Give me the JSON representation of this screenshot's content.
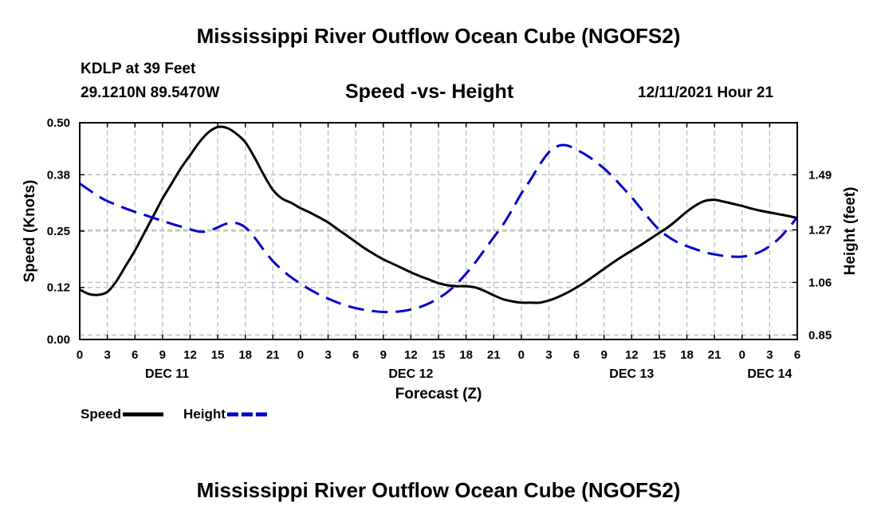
{
  "page": {
    "title": "Mississippi River Outflow Ocean Cube (NGOFS2)",
    "station": "KDLP at 39 Feet",
    "coords": "29.1210N  89.5470W",
    "subtitle": "Speed -vs- Height",
    "datetime": "12/11/2021 Hour 21",
    "footer_title": "Mississippi River Outflow Ocean Cube (NGOFS2)"
  },
  "chart_data": {
    "type": "line",
    "title": "Speed -vs- Height",
    "xlabel": "Forecast (Z)",
    "ylabel": "Speed (Knots)",
    "y2label": "Height (feet)",
    "x_unit": "hours since 12/11/2021 00Z",
    "xlim": [
      0,
      78
    ],
    "ylim": [
      0,
      0.5
    ],
    "y2lim": [
      0.832,
      1.698
    ],
    "grid": true,
    "x_ticks": [
      0,
      3,
      6,
      9,
      12,
      15,
      18,
      21,
      24,
      27,
      30,
      33,
      36,
      39,
      42,
      45,
      48,
      51,
      54,
      57,
      60,
      63,
      66,
      69,
      72,
      75,
      78
    ],
    "x_tick_labels": [
      "0",
      "3",
      "6",
      "9",
      "12",
      "15",
      "18",
      "21",
      "0",
      "3",
      "6",
      "9",
      "12",
      "15",
      "18",
      "21",
      "0",
      "3",
      "6",
      "9",
      "12",
      "15",
      "18",
      "21",
      "0",
      "3",
      "6"
    ],
    "date_labels": [
      {
        "x": 9.5,
        "label": "DEC 11"
      },
      {
        "x": 36,
        "label": "DEC 12"
      },
      {
        "x": 60,
        "label": "DEC 13"
      },
      {
        "x": 75,
        "label": "DEC 14"
      }
    ],
    "y_ticks": [
      0.0,
      0.12,
      0.25,
      0.38,
      0.5
    ],
    "y_tick_labels": [
      "0.00",
      "0.12",
      "0.25",
      "0.38",
      "0.50"
    ],
    "y2_ticks": [
      0.85,
      1.06,
      1.27,
      1.49
    ],
    "y2_tick_labels": [
      "0.85",
      "1.06",
      "1.27",
      "1.49"
    ],
    "series": [
      {
        "name": "Speed",
        "axis": "left",
        "color": "#000000",
        "dash": "solid",
        "x": [
          0,
          1,
          2,
          3,
          4,
          5,
          6,
          7,
          8,
          9,
          10,
          11,
          12,
          13,
          14,
          15,
          16,
          17,
          18,
          19,
          20,
          21,
          22,
          23,
          24,
          25,
          26,
          27,
          28,
          29,
          30,
          31,
          32,
          33,
          34,
          35,
          36,
          37,
          38,
          39,
          40,
          41,
          42,
          43,
          44,
          45,
          46,
          47,
          48,
          49,
          50,
          51,
          52,
          53,
          54,
          55,
          56,
          57,
          58,
          59,
          60,
          61,
          62,
          63,
          64,
          65,
          66,
          67,
          68,
          69,
          70,
          71,
          72,
          73,
          74,
          75,
          76,
          77,
          78
        ],
        "values": [
          0.115,
          0.105,
          0.103,
          0.11,
          0.135,
          0.17,
          0.205,
          0.245,
          0.285,
          0.325,
          0.36,
          0.395,
          0.425,
          0.455,
          0.478,
          0.49,
          0.488,
          0.475,
          0.455,
          0.42,
          0.38,
          0.345,
          0.325,
          0.315,
          0.303,
          0.293,
          0.282,
          0.27,
          0.255,
          0.24,
          0.225,
          0.21,
          0.197,
          0.185,
          0.175,
          0.165,
          0.155,
          0.146,
          0.138,
          0.13,
          0.125,
          0.123,
          0.123,
          0.12,
          0.112,
          0.102,
          0.093,
          0.088,
          0.085,
          0.085,
          0.085,
          0.09,
          0.098,
          0.108,
          0.12,
          0.133,
          0.148,
          0.163,
          0.178,
          0.192,
          0.205,
          0.218,
          0.232,
          0.246,
          0.26,
          0.277,
          0.295,
          0.31,
          0.32,
          0.322,
          0.318,
          0.313,
          0.308,
          0.302,
          0.297,
          0.293,
          0.289,
          0.285,
          0.28
        ]
      },
      {
        "name": "Height",
        "axis": "right",
        "color": "#0000cc",
        "dash": "dashed",
        "x": [
          0,
          1,
          2,
          3,
          4,
          5,
          6,
          7,
          8,
          9,
          10,
          11,
          12,
          13,
          14,
          15,
          16,
          17,
          18,
          19,
          20,
          21,
          22,
          23,
          24,
          25,
          26,
          27,
          28,
          29,
          30,
          31,
          32,
          33,
          34,
          35,
          36,
          37,
          38,
          39,
          40,
          41,
          42,
          43,
          44,
          45,
          46,
          47,
          48,
          49,
          50,
          51,
          52,
          53,
          54,
          55,
          56,
          57,
          58,
          59,
          60,
          61,
          62,
          63,
          64,
          65,
          66,
          67,
          68,
          69,
          70,
          71,
          72,
          73,
          74,
          75,
          76,
          77,
          78
        ],
        "values": [
          1.455,
          1.43,
          1.405,
          1.385,
          1.37,
          1.355,
          1.342,
          1.33,
          1.318,
          1.306,
          1.294,
          1.283,
          1.272,
          1.263,
          1.265,
          1.28,
          1.295,
          1.297,
          1.28,
          1.24,
          1.19,
          1.145,
          1.11,
          1.08,
          1.055,
          1.032,
          1.012,
          0.995,
          0.98,
          0.967,
          0.957,
          0.95,
          0.945,
          0.942,
          0.942,
          0.945,
          0.952,
          0.962,
          0.977,
          0.997,
          1.022,
          1.055,
          1.095,
          1.14,
          1.19,
          1.24,
          1.29,
          1.35,
          1.415,
          1.47,
          1.53,
          1.58,
          1.605,
          1.607,
          1.59,
          1.57,
          1.545,
          1.515,
          1.48,
          1.44,
          1.4,
          1.355,
          1.31,
          1.27,
          1.242,
          1.22,
          1.205,
          1.192,
          1.18,
          1.172,
          1.166,
          1.163,
          1.163,
          1.17,
          1.183,
          1.205,
          1.235,
          1.275,
          1.32
        ]
      }
    ],
    "legend": [
      {
        "label": "Speed",
        "color": "#000000",
        "dash": "solid"
      },
      {
        "label": "Height",
        "color": "#0000cc",
        "dash": "dashed"
      }
    ],
    "legend_position": "bottom-left"
  }
}
